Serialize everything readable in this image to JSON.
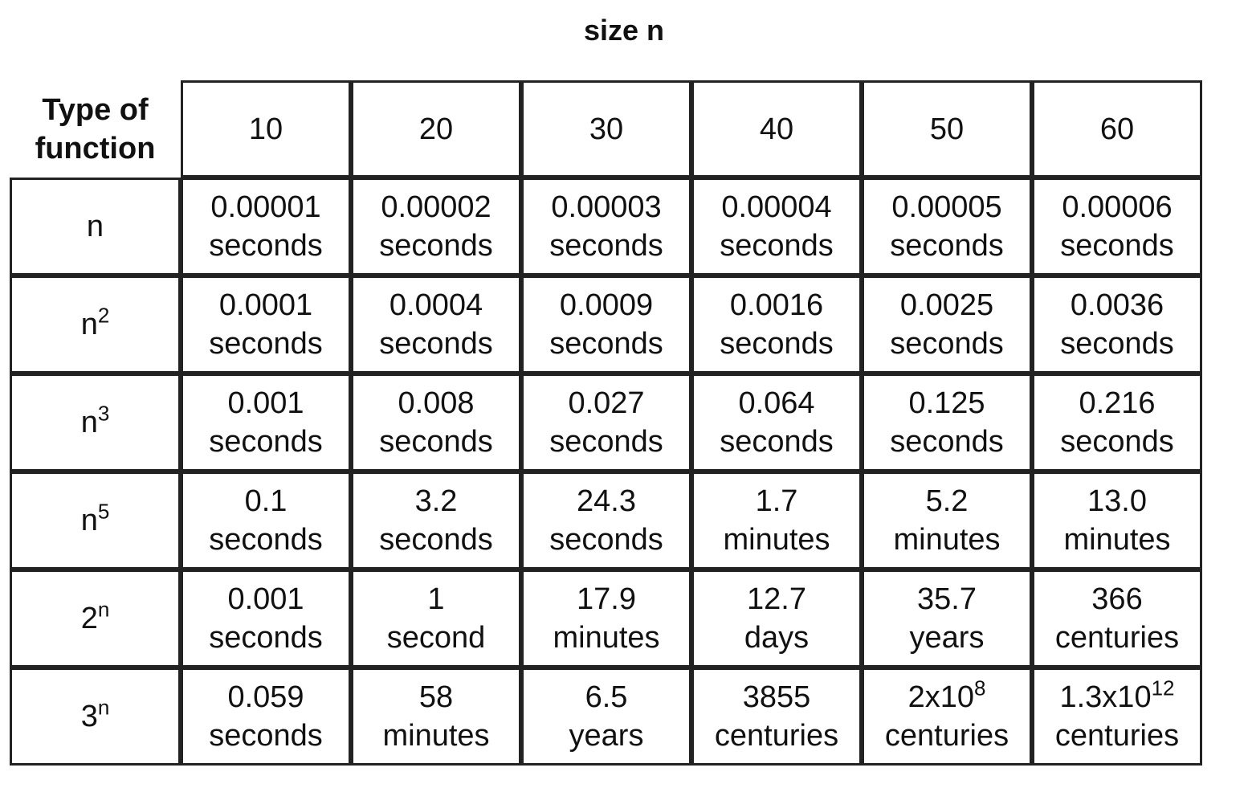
{
  "title": "size n",
  "header": {
    "corner_line1": "Type of",
    "corner_line2": "function",
    "sizes": [
      "10",
      "20",
      "30",
      "40",
      "50",
      "60"
    ]
  },
  "rows": [
    {
      "fn_base": "n",
      "fn_exp": "",
      "cells": [
        {
          "v": "0.00001",
          "e": "",
          "u": "seconds"
        },
        {
          "v": "0.00002",
          "e": "",
          "u": "seconds"
        },
        {
          "v": "0.00003",
          "e": "",
          "u": "seconds"
        },
        {
          "v": "0.00004",
          "e": "",
          "u": "seconds"
        },
        {
          "v": "0.00005",
          "e": "",
          "u": "seconds"
        },
        {
          "v": "0.00006",
          "e": "",
          "u": "seconds"
        }
      ]
    },
    {
      "fn_base": "n",
      "fn_exp": "2",
      "cells": [
        {
          "v": "0.0001",
          "e": "",
          "u": "seconds"
        },
        {
          "v": "0.0004",
          "e": "",
          "u": "seconds"
        },
        {
          "v": "0.0009",
          "e": "",
          "u": "seconds"
        },
        {
          "v": "0.0016",
          "e": "",
          "u": "seconds"
        },
        {
          "v": "0.0025",
          "e": "",
          "u": "seconds"
        },
        {
          "v": "0.0036",
          "e": "",
          "u": "seconds"
        }
      ]
    },
    {
      "fn_base": "n",
      "fn_exp": "3",
      "cells": [
        {
          "v": "0.001",
          "e": "",
          "u": "seconds"
        },
        {
          "v": "0.008",
          "e": "",
          "u": "seconds"
        },
        {
          "v": "0.027",
          "e": "",
          "u": "seconds"
        },
        {
          "v": "0.064",
          "e": "",
          "u": "seconds"
        },
        {
          "v": "0.125",
          "e": "",
          "u": "seconds"
        },
        {
          "v": "0.216",
          "e": "",
          "u": "seconds"
        }
      ]
    },
    {
      "fn_base": "n",
      "fn_exp": "5",
      "cells": [
        {
          "v": "0.1",
          "e": "",
          "u": "seconds"
        },
        {
          "v": "3.2",
          "e": "",
          "u": "seconds"
        },
        {
          "v": "24.3",
          "e": "",
          "u": "seconds"
        },
        {
          "v": "1.7",
          "e": "",
          "u": "minutes"
        },
        {
          "v": "5.2",
          "e": "",
          "u": "minutes"
        },
        {
          "v": "13.0",
          "e": "",
          "u": "minutes"
        }
      ]
    },
    {
      "fn_base": "2",
      "fn_exp": "n",
      "cells": [
        {
          "v": "0.001",
          "e": "",
          "u": "seconds"
        },
        {
          "v": "1",
          "e": "",
          "u": "second"
        },
        {
          "v": "17.9",
          "e": "",
          "u": "minutes"
        },
        {
          "v": "12.7",
          "e": "",
          "u": "days"
        },
        {
          "v": "35.7",
          "e": "",
          "u": "years"
        },
        {
          "v": "366",
          "e": "",
          "u": "centuries"
        }
      ]
    },
    {
      "fn_base": "3",
      "fn_exp": "n",
      "cells": [
        {
          "v": "0.059",
          "e": "",
          "u": "seconds"
        },
        {
          "v": "58",
          "e": "",
          "u": "minutes"
        },
        {
          "v": "6.5",
          "e": "",
          "u": "years"
        },
        {
          "v": "3855",
          "e": "",
          "u": "centuries"
        },
        {
          "v": "2x10",
          "e": "8",
          "u": "centuries"
        },
        {
          "v": "1.3x10",
          "e": "12",
          "u": "centuries"
        }
      ]
    }
  ]
}
